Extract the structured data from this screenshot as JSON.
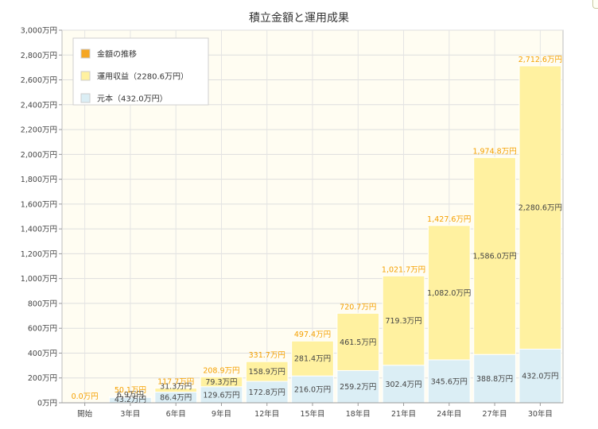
{
  "chart_data": {
    "type": "bar",
    "stacked": true,
    "title": "積立金額と運用成果",
    "categories": [
      "開始",
      "3年目",
      "6年目",
      "9年目",
      "12年目",
      "15年目",
      "18年目",
      "21年目",
      "24年目",
      "27年目",
      "30年目"
    ],
    "series": [
      {
        "name": "元本（432.0万円）",
        "color": "#dbeef5",
        "values": [
          0,
          43.2,
          86.4,
          129.6,
          172.8,
          216.0,
          259.2,
          302.4,
          345.6,
          388.8,
          432.0
        ],
        "labels": [
          "",
          "43.2万円",
          "86.4万円",
          "129.6万円",
          "172.8万円",
          "216.0万円",
          "259.2万円",
          "302.4万円",
          "345.6万円",
          "388.8万円",
          "432.0万円"
        ]
      },
      {
        "name": "運用収益（2280.6万円）",
        "color": "#fff1a0",
        "values": [
          0,
          6.9,
          31.3,
          79.3,
          158.9,
          281.4,
          461.5,
          719.3,
          1082.0,
          1586.0,
          2280.6
        ],
        "labels": [
          "",
          "6.9万円",
          "31.3万円",
          "79.3万円",
          "158.9万円",
          "281.4万円",
          "461.5万円",
          "719.3万円",
          "1,082.0万円",
          "1,586.0万円",
          "2,280.6万円"
        ]
      }
    ],
    "totals": {
      "name": "金額の推移",
      "color": "#f5a623",
      "values": [
        0,
        50.1,
        117.7,
        208.9,
        331.7,
        497.4,
        720.7,
        1021.7,
        1427.6,
        1974.8,
        2712.6
      ],
      "labels": [
        "0.0万円",
        "50.1万円",
        "117.7万円",
        "208.9万円",
        "331.7万円",
        "497.4万円",
        "720.7万円",
        "1,021.7万円",
        "1,427.6万円",
        "1,974.8万円",
        "2,712.6万円"
      ]
    },
    "ylim": [
      0,
      3000
    ],
    "ytick_step": 200,
    "yticks": [
      "0万円",
      "200万円",
      "400万円",
      "600万円",
      "800万円",
      "1,000万円",
      "1,200万円",
      "1,400万円",
      "1,600万円",
      "1,800万円",
      "2,000万円",
      "2,200万円",
      "2,400万円",
      "2,600万円",
      "2,800万円",
      "3,000万円"
    ],
    "legend": {
      "position": "top-left",
      "items": [
        "金額の推移",
        "運用収益（2280.6万円）",
        "元本（432.0万円）"
      ]
    },
    "grid": true,
    "plot_background": "#fffdf2",
    "total_label_color": "#f5a000"
  }
}
